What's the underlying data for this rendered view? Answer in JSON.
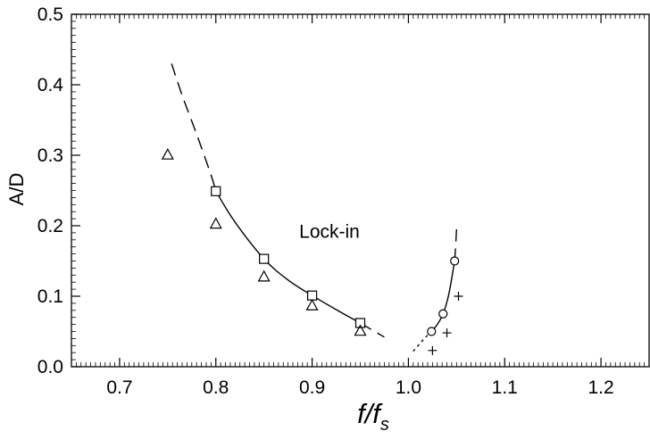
{
  "chart_data": {
    "type": "scatter",
    "xlabel_main": "f/f",
    "xlabel_sub": "s",
    "ylabel": "A/D",
    "xlim": [
      0.65,
      1.25
    ],
    "ylim": [
      0.0,
      0.5
    ],
    "x_ticks": [
      {
        "value": 0.7,
        "label": "0.7"
      },
      {
        "value": 0.8,
        "label": "0.8"
      },
      {
        "value": 0.9,
        "label": "0.9"
      },
      {
        "value": 1.0,
        "label": "1.0"
      },
      {
        "value": 1.1,
        "label": "1.1"
      },
      {
        "value": 1.2,
        "label": "1.2"
      }
    ],
    "y_ticks": [
      {
        "value": 0.0,
        "label": "0.0"
      },
      {
        "value": 0.1,
        "label": "0.1"
      },
      {
        "value": 0.2,
        "label": "0.2"
      },
      {
        "value": 0.3,
        "label": "0.3"
      },
      {
        "value": 0.4,
        "label": "0.4"
      },
      {
        "value": 0.5,
        "label": "0.5"
      }
    ],
    "grid": false,
    "annotations": [
      {
        "text": "Lock-in",
        "x": 0.918,
        "y": 0.183
      }
    ],
    "series": [
      {
        "marker": "square",
        "x": [
          0.8,
          0.85,
          0.9,
          0.95
        ],
        "y": [
          0.249,
          0.153,
          0.101,
          0.062
        ]
      },
      {
        "marker": "triangle",
        "x": [
          0.75,
          0.8,
          0.85,
          0.9,
          0.95
        ],
        "y": [
          0.301,
          0.203,
          0.128,
          0.087,
          0.051
        ]
      },
      {
        "marker": "circle",
        "x": [
          1.024,
          1.036,
          1.048
        ],
        "y": [
          0.05,
          0.075,
          0.15
        ]
      },
      {
        "marker": "plus",
        "x": [
          1.025,
          1.04,
          1.052
        ],
        "y": [
          0.023,
          0.048,
          0.1
        ]
      }
    ],
    "curves": [
      {
        "style": "solid",
        "x": [
          0.8,
          0.82,
          0.85,
          0.875,
          0.9,
          0.925,
          0.95
        ],
        "y": [
          0.249,
          0.205,
          0.153,
          0.123,
          0.101,
          0.081,
          0.062
        ]
      },
      {
        "style": "dashed",
        "x": [
          0.754,
          0.765,
          0.78,
          0.795,
          0.8
        ],
        "y": [
          0.43,
          0.385,
          0.33,
          0.272,
          0.249
        ]
      },
      {
        "style": "dashed",
        "x": [
          0.95,
          0.965,
          0.975
        ],
        "y": [
          0.062,
          0.05,
          0.042
        ]
      },
      {
        "style": "solid",
        "x": [
          1.024,
          1.03,
          1.036,
          1.042,
          1.048
        ],
        "y": [
          0.05,
          0.06,
          0.075,
          0.103,
          0.15
        ]
      },
      {
        "style": "dotted",
        "x": [
          1.005,
          1.012,
          1.018,
          1.024
        ],
        "y": [
          0.022,
          0.033,
          0.042,
          0.05
        ]
      },
      {
        "style": "dashed",
        "x": [
          1.048,
          1.049,
          1.05
        ],
        "y": [
          0.15,
          0.17,
          0.195
        ]
      }
    ]
  }
}
